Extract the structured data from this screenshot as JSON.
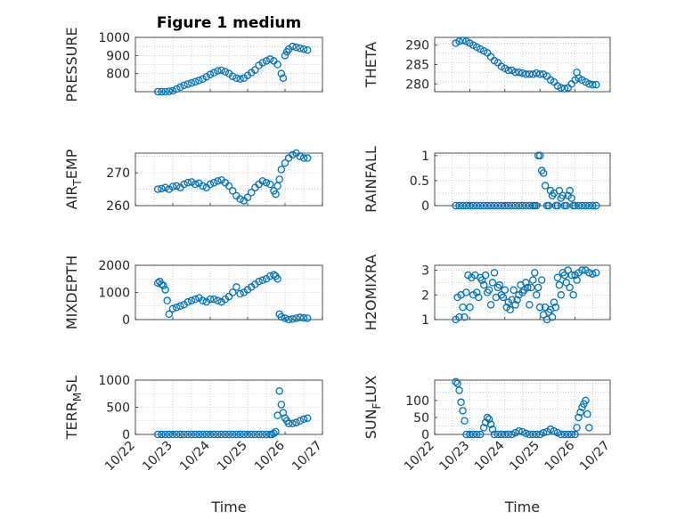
{
  "figure": {
    "title": "Figure 1 medium"
  },
  "colors": {
    "marker": "#0072BD",
    "grid": "#b0b0b0",
    "axis": "#262626"
  },
  "chart_data": [
    {
      "type": "scatter",
      "id": "pressure",
      "ylabel": "PRESSURE",
      "xlabel": "",
      "ylim": [
        700,
        1000
      ],
      "yticks": [
        800,
        900,
        1000
      ],
      "ytick_labels": [
        "800",
        "900",
        "1000"
      ],
      "show_xticks": false,
      "title": "Figure 1 medium",
      "x": [
        22.6,
        22.7,
        22.8,
        22.9,
        23.0,
        23.1,
        23.2,
        23.3,
        23.4,
        23.5,
        23.6,
        23.7,
        23.8,
        23.9,
        24.0,
        24.1,
        24.2,
        24.3,
        24.4,
        24.5,
        24.6,
        24.7,
        24.8,
        24.9,
        25.0,
        25.1,
        25.2,
        25.3,
        25.4,
        25.5,
        25.6,
        25.7,
        25.8,
        25.9,
        25.95,
        26.0,
        26.05,
        26.1,
        26.2,
        26.3,
        26.4,
        26.5,
        26.6
      ],
      "y": [
        700,
        698,
        700,
        702,
        705,
        715,
        725,
        735,
        742,
        748,
        755,
        762,
        770,
        782,
        795,
        805,
        815,
        818,
        810,
        800,
        785,
        775,
        770,
        775,
        790,
        805,
        820,
        845,
        860,
        870,
        880,
        870,
        850,
        800,
        775,
        900,
        920,
        935,
        950,
        945,
        940,
        935,
        930
      ]
    },
    {
      "type": "scatter",
      "id": "theta",
      "ylabel": "THETA",
      "xlabel": "",
      "ylim": [
        278,
        292
      ],
      "yticks": [
        280,
        285,
        290
      ],
      "ytick_labels": [
        "280",
        "285",
        "290"
      ],
      "show_xticks": false,
      "x": [
        22.6,
        22.7,
        22.8,
        22.9,
        23.0,
        23.1,
        23.2,
        23.3,
        23.4,
        23.5,
        23.6,
        23.7,
        23.8,
        23.9,
        24.0,
        24.1,
        24.2,
        24.3,
        24.4,
        24.5,
        24.6,
        24.7,
        24.8,
        24.9,
        25.0,
        25.1,
        25.2,
        25.3,
        25.4,
        25.5,
        25.6,
        25.7,
        25.8,
        25.9,
        26.0,
        26.05,
        26.1,
        26.2,
        26.3,
        26.4,
        26.5,
        26.6
      ],
      "y": [
        290.5,
        291,
        291.2,
        291,
        290.5,
        290,
        289.5,
        289,
        288.5,
        288,
        287,
        286,
        285.5,
        284.5,
        284,
        283.5,
        283.5,
        283,
        283,
        282.8,
        282.5,
        282.5,
        282.5,
        282.8,
        282.5,
        282.5,
        282,
        281,
        280.5,
        279.5,
        279,
        278.8,
        279,
        280,
        281,
        283,
        281.5,
        281,
        280.5,
        280,
        279.8,
        279.8
      ]
    },
    {
      "type": "scatter",
      "id": "air_temp",
      "ylabel": "AIR",
      "ylabel_sub": "T",
      "ylabel_rest": "EMP",
      "ylim": [
        260,
        276
      ],
      "yticks": [
        260,
        270
      ],
      "ytick_labels": [
        "260",
        "270"
      ],
      "show_xticks": false,
      "x": [
        22.6,
        22.7,
        22.8,
        22.9,
        23.0,
        23.1,
        23.2,
        23.3,
        23.4,
        23.5,
        23.6,
        23.7,
        23.8,
        23.9,
        24.0,
        24.1,
        24.2,
        24.3,
        24.4,
        24.5,
        24.6,
        24.7,
        24.8,
        24.9,
        25.0,
        25.1,
        25.2,
        25.3,
        25.4,
        25.5,
        25.6,
        25.7,
        25.75,
        25.8,
        25.85,
        25.9,
        26.0,
        26.1,
        26.2,
        26.3,
        26.4,
        26.5,
        26.6
      ],
      "y": [
        265,
        265.2,
        265.5,
        265,
        265.8,
        266,
        265.5,
        266.5,
        267,
        267.2,
        266.5,
        266.8,
        266,
        265.5,
        266.5,
        267,
        267.5,
        267.8,
        267,
        266,
        264.5,
        263,
        262,
        261.5,
        262.5,
        264,
        265.5,
        266.5,
        267.5,
        267,
        266.5,
        264.5,
        263.5,
        266,
        268,
        271,
        273,
        274.5,
        275.5,
        276,
        275,
        274.5,
        274.5
      ]
    },
    {
      "type": "scatter",
      "id": "rainfall",
      "ylabel": "RAINFALL",
      "ylim": [
        0,
        1.05
      ],
      "yticks": [
        0,
        0.5,
        1
      ],
      "ytick_labels": [
        "0",
        "0.5",
        "1"
      ],
      "show_xticks": false,
      "x": [
        22.6,
        22.7,
        22.8,
        22.9,
        23.0,
        23.1,
        23.2,
        23.3,
        23.4,
        23.5,
        23.6,
        23.7,
        23.8,
        23.9,
        24.0,
        24.1,
        24.2,
        24.3,
        24.4,
        24.5,
        24.6,
        24.7,
        24.8,
        24.85,
        24.9,
        24.95,
        25.0,
        25.05,
        25.1,
        25.15,
        25.2,
        25.25,
        25.3,
        25.35,
        25.4,
        25.45,
        25.5,
        25.55,
        25.6,
        25.65,
        25.7,
        25.75,
        25.8,
        25.85,
        25.9,
        25.95,
        26.0,
        26.1,
        26.2,
        26.3,
        26.4,
        26.5,
        26.6
      ],
      "y": [
        0,
        0,
        0,
        0,
        0,
        0,
        0,
        0,
        0,
        0,
        0,
        0,
        0,
        0,
        0,
        0,
        0,
        0,
        0,
        0,
        0,
        0,
        0,
        0,
        0,
        1,
        1,
        0.7,
        0.65,
        0.4,
        0,
        0,
        0.3,
        0.2,
        0.25,
        0,
        0,
        0.3,
        0.15,
        0.2,
        0,
        0,
        0.2,
        0.3,
        0.15,
        0,
        0,
        0,
        0,
        0,
        0,
        0,
        0
      ]
    },
    {
      "type": "scatter",
      "id": "mixdepth",
      "ylabel": "MIXDEPTH",
      "ylim": [
        0,
        2000
      ],
      "yticks": [
        0,
        1000,
        2000
      ],
      "ytick_labels": [
        "0",
        "1000",
        "2000"
      ],
      "show_xticks": false,
      "x": [
        22.6,
        22.65,
        22.7,
        22.75,
        22.8,
        22.85,
        22.9,
        23.0,
        23.1,
        23.2,
        23.3,
        23.4,
        23.5,
        23.6,
        23.7,
        23.8,
        23.9,
        24.0,
        24.1,
        24.2,
        24.3,
        24.4,
        24.5,
        24.6,
        24.7,
        24.8,
        24.9,
        25.0,
        25.1,
        25.2,
        25.3,
        25.4,
        25.5,
        25.6,
        25.7,
        25.75,
        25.8,
        25.85,
        25.9,
        26.0,
        26.1,
        26.2,
        26.3,
        26.4,
        26.5,
        26.6
      ],
      "y": [
        1350,
        1400,
        1300,
        1250,
        1100,
        700,
        200,
        400,
        450,
        500,
        550,
        650,
        700,
        750,
        800,
        700,
        650,
        750,
        750,
        700,
        650,
        750,
        850,
        1000,
        1200,
        950,
        1000,
        1100,
        1200,
        1300,
        1400,
        1450,
        1500,
        1600,
        1650,
        1600,
        1500,
        200,
        100,
        50,
        0,
        20,
        50,
        80,
        60,
        50
      ]
    },
    {
      "type": "scatter",
      "id": "h2omixra",
      "ylabel": "H2OMIXRA",
      "ylim": [
        1,
        3.2
      ],
      "yticks": [
        1,
        2,
        3
      ],
      "ytick_labels": [
        "1",
        "2",
        "3"
      ],
      "show_xticks": false,
      "x": [
        22.6,
        22.65,
        22.7,
        22.75,
        22.8,
        22.85,
        22.9,
        22.95,
        23.0,
        23.05,
        23.1,
        23.15,
        23.2,
        23.25,
        23.3,
        23.35,
        23.4,
        23.45,
        23.5,
        23.55,
        23.6,
        23.65,
        23.7,
        23.75,
        23.8,
        23.85,
        23.9,
        23.95,
        24.0,
        24.05,
        24.1,
        24.15,
        24.2,
        24.25,
        24.3,
        24.35,
        24.4,
        24.45,
        24.5,
        24.55,
        24.6,
        24.65,
        24.7,
        24.75,
        24.8,
        24.85,
        24.9,
        24.95,
        25.0,
        25.05,
        25.1,
        25.15,
        25.2,
        25.25,
        25.3,
        25.35,
        25.4,
        25.45,
        25.5,
        25.55,
        25.6,
        25.65,
        25.7,
        25.75,
        25.8,
        25.85,
        25.9,
        25.95,
        26.0,
        26.05,
        26.1,
        26.2,
        26.3,
        26.4,
        26.5,
        26.6
      ],
      "y": [
        1.0,
        1.9,
        1.1,
        2.0,
        1.5,
        1.1,
        2.1,
        2.8,
        1.5,
        2.7,
        2.0,
        2.8,
        2.1,
        1.9,
        2.7,
        2.6,
        2.4,
        2.8,
        2.1,
        2.2,
        1.6,
        2.5,
        2.9,
        1.9,
        2.3,
        2.4,
        2.0,
        1.9,
        2.2,
        1.5,
        1.7,
        1.4,
        1.8,
        2.2,
        1.6,
        1.8,
        2.0,
        2.4,
        2.1,
        2.2,
        2.5,
        2.3,
        1.6,
        2.3,
        2.6,
        2.9,
        2.0,
        2.3,
        1.5,
        2.6,
        1.2,
        1.5,
        1.0,
        1.3,
        1.4,
        1.1,
        1.7,
        1.5,
        2.7,
        2.4,
        2.0,
        2.9,
        2.8,
        2.5,
        3.0,
        2.3,
        2.8,
        2.0,
        2.8,
        2.6,
        2.9,
        3.0,
        3.0,
        2.9,
        2.85,
        2.9
      ]
    },
    {
      "type": "scatter",
      "id": "terr_msl",
      "ylabel": "TERR",
      "ylabel_sub": "M",
      "ylabel_rest": "SL",
      "ylim": [
        0,
        1000
      ],
      "yticks": [
        0,
        500,
        1000
      ],
      "ytick_labels": [
        "0",
        "500",
        "1000"
      ],
      "xlabel": "Time",
      "show_xticks": true,
      "xlim": [
        22,
        27
      ],
      "xticks": [
        22,
        23,
        24,
        25,
        26,
        27
      ],
      "xtick_labels": [
        "10/22",
        "10/23",
        "10/24",
        "10/25",
        "10/26",
        "10/27"
      ],
      "x": [
        22.6,
        22.7,
        22.8,
        22.9,
        23.0,
        23.1,
        23.2,
        23.3,
        23.4,
        23.5,
        23.6,
        23.7,
        23.8,
        23.9,
        24.0,
        24.1,
        24.2,
        24.3,
        24.4,
        24.5,
        24.6,
        24.7,
        24.8,
        24.9,
        25.0,
        25.1,
        25.2,
        25.3,
        25.4,
        25.5,
        25.6,
        25.65,
        25.7,
        25.75,
        25.8,
        25.85,
        25.9,
        25.95,
        26.0,
        26.05,
        26.1,
        26.2,
        26.3,
        26.4,
        26.5,
        26.6
      ],
      "y": [
        0,
        0,
        0,
        0,
        0,
        0,
        0,
        0,
        0,
        0,
        0,
        0,
        0,
        0,
        0,
        0,
        0,
        0,
        0,
        0,
        0,
        0,
        0,
        0,
        0,
        0,
        0,
        0,
        0,
        0,
        0,
        0,
        20,
        50,
        350,
        800,
        550,
        400,
        300,
        250,
        200,
        200,
        220,
        250,
        280,
        300
      ]
    },
    {
      "type": "scatter",
      "id": "sun_flux",
      "ylabel": "SUN",
      "ylabel_sub": "F",
      "ylabel_rest": "LUX",
      "ylim": [
        0,
        160
      ],
      "yticks": [
        0,
        50,
        100
      ],
      "ytick_labels": [
        "0",
        "50",
        "100"
      ],
      "xlabel": "Time",
      "show_xticks": true,
      "xlim": [
        22,
        27
      ],
      "xticks": [
        22,
        23,
        24,
        25,
        26,
        27
      ],
      "xtick_labels": [
        "10/22",
        "10/23",
        "10/24",
        "10/25",
        "10/26",
        "10/27"
      ],
      "x": [
        22.6,
        22.65,
        22.7,
        22.75,
        22.8,
        22.85,
        22.9,
        23.0,
        23.1,
        23.2,
        23.3,
        23.4,
        23.45,
        23.5,
        23.55,
        23.6,
        23.65,
        23.7,
        23.8,
        23.9,
        24.0,
        24.1,
        24.2,
        24.3,
        24.4,
        24.5,
        24.6,
        24.7,
        24.8,
        24.9,
        25.0,
        25.1,
        25.2,
        25.3,
        25.4,
        25.5,
        25.6,
        25.7,
        25.8,
        25.9,
        26.0,
        26.05,
        26.1,
        26.15,
        26.2,
        26.25,
        26.3,
        26.35,
        26.4
      ],
      "y": [
        155,
        150,
        130,
        95,
        70,
        40,
        0,
        0,
        0,
        0,
        0,
        20,
        35,
        50,
        45,
        30,
        15,
        0,
        0,
        0,
        0,
        0,
        0,
        5,
        10,
        8,
        3,
        0,
        0,
        0,
        0,
        5,
        8,
        15,
        10,
        5,
        0,
        0,
        0,
        0,
        0,
        20,
        50,
        65,
        80,
        90,
        100,
        60,
        20
      ]
    }
  ]
}
